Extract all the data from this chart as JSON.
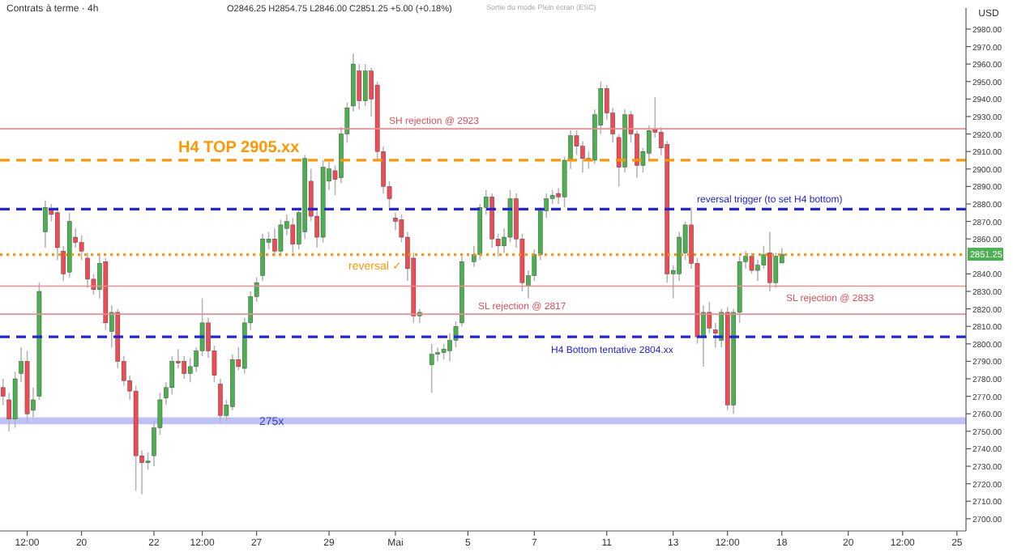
{
  "chart_data": {
    "type": "candlestick",
    "title": "Contrats à terme · 4h",
    "subtitle": "O2846.25 H2854.75 L2846.00 C2851.25 +5.00 (+0.18%)",
    "ylabel": "USD",
    "categories": [
      null,
      null,
      null,
      null,
      "12:00",
      null,
      null,
      null,
      null,
      null,
      null,
      null,
      null,
      "20",
      null,
      null,
      null,
      null,
      null,
      null,
      null,
      null,
      null,
      null,
      null,
      "22",
      null,
      null,
      null,
      null,
      null,
      null,
      null,
      "12:00",
      null,
      null,
      null,
      null,
      null,
      null,
      null,
      null,
      "27",
      null,
      null,
      null,
      null,
      null,
      null,
      null,
      null,
      null,
      null,
      null,
      "29",
      null,
      null,
      null,
      null,
      null,
      null,
      null,
      null,
      null,
      null,
      "Mai",
      null,
      null,
      null,
      null,
      null,
      null,
      null,
      null,
      null,
      null,
      null,
      "5",
      null,
      null,
      null,
      null,
      null,
      null,
      null,
      null,
      null,
      null,
      "7",
      null,
      null,
      null,
      null,
      null,
      null,
      null,
      null,
      null,
      null,
      null,
      "11",
      null,
      null,
      null,
      null,
      null,
      null,
      null,
      null,
      null,
      null,
      "13",
      null,
      null,
      null,
      null,
      null,
      null,
      null,
      null,
      "12:00",
      null,
      null,
      null,
      null,
      null,
      null,
      null,
      null,
      "18",
      null,
      null,
      null,
      null,
      null,
      null,
      null,
      null,
      null,
      null,
      "20",
      null,
      null,
      null,
      null,
      null,
      null,
      null,
      null,
      "12:00",
      null,
      null,
      null,
      null,
      null,
      null,
      null,
      null,
      "25",
      null
    ],
    "ohlc": [
      [
        2775,
        2780,
        2765,
        2770
      ],
      [
        2768,
        2772,
        2750,
        2757
      ],
      [
        2757,
        2784,
        2752,
        2780
      ],
      [
        2783,
        2798,
        2778,
        2790
      ],
      [
        2790,
        2796,
        2755,
        2760
      ],
      [
        2762,
        2775,
        2758,
        2768
      ],
      [
        2770,
        2835,
        2768,
        2830
      ],
      [
        2864,
        2882,
        2855,
        2878
      ],
      [
        2877,
        2880,
        2870,
        2874
      ],
      [
        2875,
        2878,
        2848,
        2855
      ],
      [
        2853,
        2856,
        2836,
        2840
      ],
      [
        2841,
        2875,
        2838,
        2870
      ],
      [
        2861,
        2866,
        2855,
        2858
      ],
      [
        2858,
        2862,
        2848,
        2853
      ],
      [
        2849,
        2852,
        2832,
        2837
      ],
      [
        2837,
        2840,
        2828,
        2831
      ],
      [
        2831,
        2852,
        2826,
        2846
      ],
      [
        2847,
        2849,
        2808,
        2812
      ],
      [
        2807,
        2822,
        2798,
        2818
      ],
      [
        2818,
        2820,
        2786,
        2790
      ],
      [
        2790,
        2793,
        2776,
        2779
      ],
      [
        2779,
        2782,
        2768,
        2773
      ],
      [
        2773,
        2776,
        2716,
        2736
      ],
      [
        2736,
        2739,
        2714,
        2732
      ],
      [
        2732,
        2738,
        2728,
        2733
      ],
      [
        2736,
        2756,
        2730,
        2752
      ],
      [
        2752,
        2772,
        2748,
        2768
      ],
      [
        2769,
        2778,
        2765,
        2775
      ],
      [
        2775,
        2793,
        2771,
        2790
      ],
      [
        2790,
        2797,
        2786,
        2789
      ],
      [
        2790,
        2793,
        2780,
        2783
      ],
      [
        2783,
        2792,
        2778,
        2787
      ],
      [
        2787,
        2798,
        2784,
        2796
      ],
      [
        2796,
        2826,
        2793,
        2812
      ],
      [
        2812,
        2815,
        2792,
        2796
      ],
      [
        2796,
        2799,
        2778,
        2782
      ],
      [
        2777,
        2780,
        2755,
        2759
      ],
      [
        2759,
        2768,
        2756,
        2765
      ],
      [
        2764,
        2794,
        2762,
        2791
      ],
      [
        2791,
        2798,
        2785,
        2787
      ],
      [
        2786,
        2815,
        2783,
        2812
      ],
      [
        2812,
        2830,
        2808,
        2827
      ],
      [
        2827,
        2838,
        2824,
        2835
      ],
      [
        2839,
        2863,
        2836,
        2860
      ],
      [
        2858,
        2864,
        2854,
        2860
      ],
      [
        2860,
        2866,
        2850,
        2853
      ],
      [
        2853,
        2871,
        2850,
        2868
      ],
      [
        2866,
        2874,
        2862,
        2870
      ],
      [
        2868,
        2872,
        2852,
        2857
      ],
      [
        2857,
        2878,
        2854,
        2875
      ],
      [
        2864,
        2908,
        2860,
        2906
      ],
      [
        2893,
        2900,
        2870,
        2873
      ],
      [
        2873,
        2876,
        2855,
        2861
      ],
      [
        2861,
        2905,
        2858,
        2901
      ],
      [
        2893,
        2904,
        2888,
        2900
      ],
      [
        2899,
        2902,
        2885,
        2894
      ],
      [
        2895,
        2924,
        2892,
        2920
      ],
      [
        2920,
        2938,
        2915,
        2935
      ],
      [
        2936,
        2966,
        2933,
        2960
      ],
      [
        2956,
        2960,
        2934,
        2939
      ],
      [
        2939,
        2960,
        2936,
        2956
      ],
      [
        2956,
        2958,
        2930,
        2940
      ],
      [
        2948,
        2950,
        2905,
        2910
      ],
      [
        2910,
        2913,
        2886,
        2890
      ],
      [
        2890,
        2893,
        2878,
        2883
      ],
      [
        2872,
        2875,
        2865,
        2870
      ],
      [
        2871,
        2874,
        2858,
        2861
      ],
      [
        2861,
        2864,
        2836,
        2843
      ],
      [
        2849,
        2852,
        2812,
        2816
      ],
      [
        2816,
        2820,
        2812,
        2818
      ],
      null,
      [
        2788,
        2800,
        2772,
        2794
      ],
      [
        2794,
        2798,
        2790,
        2795
      ],
      [
        2795,
        2800,
        2791,
        2797
      ],
      [
        2796,
        2806,
        2790,
        2802
      ],
      [
        2802,
        2813,
        2798,
        2810
      ],
      [
        2812,
        2850,
        2810,
        2847
      ],
      null,
      [
        2847,
        2856,
        2844,
        2851
      ],
      [
        2851,
        2880,
        2848,
        2878
      ],
      [
        2878,
        2888,
        2874,
        2884
      ],
      [
        2884,
        2886,
        2855,
        2860
      ],
      [
        2860,
        2863,
        2850,
        2856
      ],
      [
        2856,
        2866,
        2852,
        2861
      ],
      [
        2861,
        2888,
        2858,
        2883
      ],
      [
        2883,
        2886,
        2855,
        2860
      ],
      [
        2860,
        2863,
        2830,
        2835
      ],
      [
        2833,
        2842,
        2826,
        2839
      ],
      [
        2839,
        2854,
        2836,
        2851
      ],
      [
        2851,
        2878,
        2848,
        2876
      ],
      [
        2876,
        2886,
        2872,
        2883
      ],
      [
        2883,
        2888,
        2880,
        2885
      ],
      [
        2886,
        2889,
        2880,
        2884
      ],
      [
        2884,
        2907,
        2878,
        2905
      ],
      [
        2905,
        2922,
        2900,
        2919
      ],
      [
        2919,
        2922,
        2908,
        2913
      ],
      [
        2913,
        2916,
        2898,
        2906
      ],
      [
        2906,
        2910,
        2900,
        2905
      ],
      [
        2905,
        2934,
        2903,
        2931
      ],
      [
        2925,
        2950,
        2920,
        2946
      ],
      [
        2946,
        2948,
        2928,
        2932
      ],
      [
        2932,
        2935,
        2915,
        2920
      ],
      [
        2918,
        2920,
        2890,
        2901
      ],
      [
        2901,
        2934,
        2898,
        2931
      ],
      [
        2931,
        2933,
        2915,
        2920
      ],
      [
        2920,
        2922,
        2895,
        2902
      ],
      [
        2902,
        2912,
        2898,
        2910
      ],
      [
        2909,
        2925,
        2905,
        2922
      ],
      [
        2923,
        2941,
        2918,
        2921
      ],
      [
        2921,
        2924,
        2908,
        2912
      ],
      [
        2914,
        2916,
        2835,
        2840
      ],
      [
        2840,
        2845,
        2826,
        2842
      ],
      [
        2840,
        2864,
        2836,
        2861
      ],
      [
        2852,
        2870,
        2848,
        2868
      ],
      [
        2868,
        2878,
        2843,
        2846
      ],
      [
        2846,
        2849,
        2800,
        2804
      ],
      [
        2804,
        2822,
        2787,
        2818
      ],
      [
        2818,
        2824,
        2806,
        2809
      ],
      [
        2808,
        2812,
        2798,
        2806
      ],
      [
        2802,
        2820,
        2798,
        2818
      ],
      [
        2818,
        2821,
        2762,
        2765
      ],
      [
        2765,
        2820,
        2760,
        2818
      ],
      [
        2818,
        2850,
        2812,
        2847
      ],
      [
        2847,
        2853,
        2843,
        2850
      ],
      [
        2850,
        2852,
        2840,
        2842
      ],
      [
        2842,
        2848,
        2836,
        2845
      ],
      [
        2845,
        2856,
        2843,
        2851
      ],
      [
        2852,
        2864,
        2830,
        2835
      ],
      [
        2835,
        2852,
        2832,
        2850
      ],
      [
        2846.25,
        2854.75,
        2846,
        2851.25
      ],
      null,
      null,
      null,
      null,
      null,
      null,
      null,
      null,
      null,
      null,
      null,
      null,
      null,
      null,
      null,
      null,
      null,
      null,
      null,
      null,
      null,
      null,
      null,
      null,
      null,
      null,
      null,
      null,
      null,
      null
    ],
    "ylim": [
      2693,
      2992
    ],
    "yticks": [
      {
        "value": 2700,
        "label": "2700.00"
      },
      {
        "value": 2710,
        "label": "2710.00"
      },
      {
        "value": 2720,
        "label": "2720.00"
      },
      {
        "value": 2730,
        "label": "2730.00"
      },
      {
        "value": 2740,
        "label": "2740.00"
      },
      {
        "value": 2750,
        "label": "2750.00"
      },
      {
        "value": 2760,
        "label": "2760.00"
      },
      {
        "value": 2770,
        "label": "2770.00"
      },
      {
        "value": 2780,
        "label": "2780.00"
      },
      {
        "value": 2790,
        "label": "2790.00"
      },
      {
        "value": 2800,
        "label": "2800.00"
      },
      {
        "value": 2810,
        "label": "2810.00"
      },
      {
        "value": 2820,
        "label": "2820.00"
      },
      {
        "value": 2830,
        "label": "2830.00"
      },
      {
        "value": 2840,
        "label": "2840.00"
      },
      {
        "value": 2860,
        "label": "2860.00"
      },
      {
        "value": 2870,
        "label": "2870.00"
      },
      {
        "value": 2880,
        "label": "2880.00"
      },
      {
        "value": 2890,
        "label": "2890.00"
      },
      {
        "value": 2900,
        "label": "2900.00"
      },
      {
        "value": 2910,
        "label": "2910.00"
      },
      {
        "value": 2920,
        "label": "2920.00"
      },
      {
        "value": 2930,
        "label": "2930.00"
      },
      {
        "value": 2940,
        "label": "2940.00"
      },
      {
        "value": 2950,
        "label": "2950.00"
      },
      {
        "value": 2960,
        "label": "2960.00"
      },
      {
        "value": 2970,
        "label": "2970.00"
      },
      {
        "value": 2980,
        "label": "2980.00"
      }
    ],
    "ref_lines": [
      {
        "axis": "y",
        "value": 2923,
        "label": "SH rejection @ 2923",
        "color": "#f08a8f",
        "line_style": "solid"
      },
      {
        "axis": "y",
        "value": 2905,
        "label": "H4 TOP 2905.xx",
        "color": "#ff9800",
        "line_style": "dashed"
      },
      {
        "axis": "y",
        "value": 2877,
        "label": "reversal trigger (to set H4 bottom)",
        "color": "#2424d8",
        "line_style": "dashed"
      },
      {
        "axis": "y",
        "value": 2851,
        "label": "reversal ✓",
        "color": "#ff9800",
        "line_style": "dotted"
      },
      {
        "axis": "y",
        "value": 2833,
        "label": "SL rejection @ 2833",
        "color": "#f08a8f",
        "line_style": "solid"
      },
      {
        "axis": "y",
        "value": 2817,
        "label": "SL rejection @ 2817",
        "color": "#f08a8f",
        "line_style": "solid"
      },
      {
        "axis": "y",
        "value": 2804,
        "label": "H4 Bottom tentative 2804.xx",
        "color": "#2424d8",
        "line_style": "dashed"
      }
    ],
    "bands": [
      {
        "axis": "y",
        "from": 2754,
        "to": 2758,
        "label": "275x",
        "color": "#b8bbf5"
      }
    ],
    "annotations": [
      "Sortie du mode Plein écran (ESC)",
      {
        "text": "2851.25",
        "y": 2851.25
      }
    ]
  }
}
